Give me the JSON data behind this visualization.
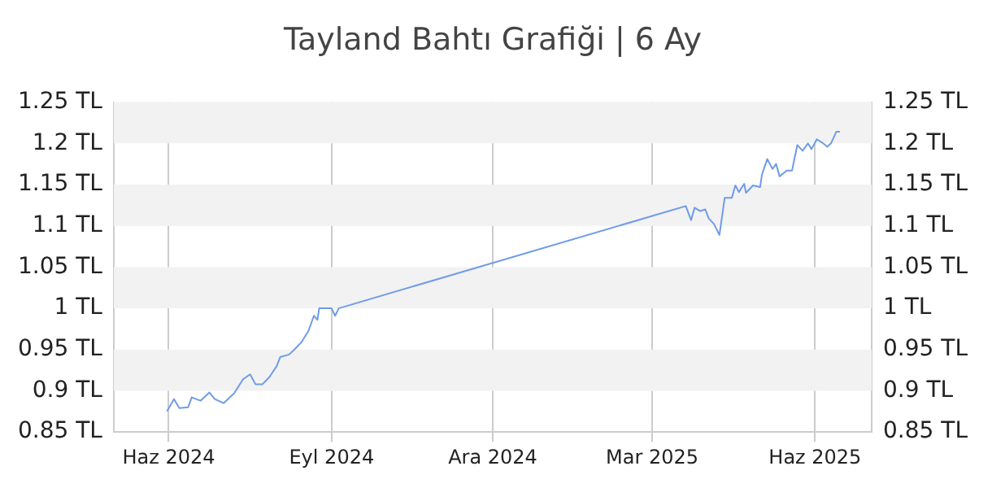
{
  "chart_data": {
    "type": "line",
    "title": "Tayland Bahtı Grafiği | 6 Ay",
    "x": [
      "2024-05-31",
      "2024-06-04",
      "2024-06-07",
      "2024-06-12",
      "2024-06-14",
      "2024-06-19",
      "2024-06-24",
      "2024-06-27",
      "2024-07-02",
      "2024-07-08",
      "2024-07-13",
      "2024-07-17",
      "2024-07-20",
      "2024-07-24",
      "2024-07-28",
      "2024-08-01",
      "2024-08-03",
      "2024-08-08",
      "2024-08-11",
      "2024-08-15",
      "2024-08-19",
      "2024-08-22",
      "2024-08-24",
      "2024-08-25",
      "2024-09-01",
      "2024-09-03",
      "2024-09-05",
      "2025-03-20",
      "2025-03-23",
      "2025-03-25",
      "2025-03-28",
      "2025-03-31",
      "2025-04-02",
      "2025-04-05",
      "2025-04-08",
      "2025-04-11",
      "2025-04-15",
      "2025-04-17",
      "2025-04-19",
      "2025-04-22",
      "2025-04-23",
      "2025-04-27",
      "2025-05-01",
      "2025-05-02",
      "2025-05-05",
      "2025-05-08",
      "2025-05-10",
      "2025-05-12",
      "2025-05-16",
      "2025-05-19",
      "2025-05-22",
      "2025-05-25",
      "2025-05-28",
      "2025-05-30",
      "2025-06-02",
      "2025-06-05",
      "2025-06-08",
      "2025-06-10",
      "2025-06-13",
      "2025-06-15"
    ],
    "series": [
      {
        "color": "#6f9be8",
        "values": [
          0.875,
          0.89,
          0.879,
          0.88,
          0.892,
          0.888,
          0.898,
          0.89,
          0.885,
          0.897,
          0.914,
          0.92,
          0.908,
          0.908,
          0.917,
          0.93,
          0.941,
          0.944,
          0.95,
          0.959,
          0.973,
          0.991,
          0.986,
          1.0,
          1.0,
          0.991,
          1.0,
          1.124,
          1.107,
          1.122,
          1.118,
          1.12,
          1.109,
          1.102,
          1.089,
          1.134,
          1.134,
          1.149,
          1.141,
          1.151,
          1.14,
          1.149,
          1.147,
          1.162,
          1.181,
          1.169,
          1.175,
          1.16,
          1.167,
          1.167,
          1.198,
          1.191,
          1.2,
          1.193,
          1.205,
          1.201,
          1.196,
          1.2,
          1.214,
          1.214
        ]
      }
    ],
    "xlim": [
      "2024-05-01",
      "2025-07-03"
    ],
    "xticks": [
      {
        "value": "2024-06-01",
        "label": "Haz 2024"
      },
      {
        "value": "2024-09-01",
        "label": "Eyl 2024"
      },
      {
        "value": "2024-12-01",
        "label": "Ara 2024"
      },
      {
        "value": "2025-03-01",
        "label": "Mar 2025"
      },
      {
        "value": "2025-06-01",
        "label": "Haz 2025"
      }
    ],
    "ylim": [
      0.85,
      1.25
    ],
    "yticks": [
      {
        "value": 0.85,
        "label": "0.85 TL"
      },
      {
        "value": 0.9,
        "label": "0.9 TL"
      },
      {
        "value": 0.95,
        "label": "0.95 TL"
      },
      {
        "value": 1,
        "label": "1 TL"
      },
      {
        "value": 1.05,
        "label": "1.05 TL"
      },
      {
        "value": 1.1,
        "label": "1.1 TL"
      },
      {
        "value": 1.15,
        "label": "1.15 TL"
      },
      {
        "value": 1.2,
        "label": "1.2 TL"
      },
      {
        "value": 1.25,
        "label": "1.25 TL"
      }
    ],
    "y2lim": [
      0.85,
      1.25
    ],
    "y2ticks": [
      {
        "value": 0.85,
        "label": "0.85 TL"
      },
      {
        "value": 0.9,
        "label": "0.9 TL"
      },
      {
        "value": 0.95,
        "label": "0.95 TL"
      },
      {
        "value": 1,
        "label": "1 TL"
      },
      {
        "value": 1.05,
        "label": "1.05 TL"
      },
      {
        "value": 1.1,
        "label": "1.1 TL"
      },
      {
        "value": 1.15,
        "label": "1.15 TL"
      },
      {
        "value": 1.2,
        "label": "1.2 TL"
      },
      {
        "value": 1.25,
        "label": "1.25 TL"
      }
    ],
    "grid": "x",
    "legend": false,
    "marker": "none",
    "line_style": "solid"
  }
}
